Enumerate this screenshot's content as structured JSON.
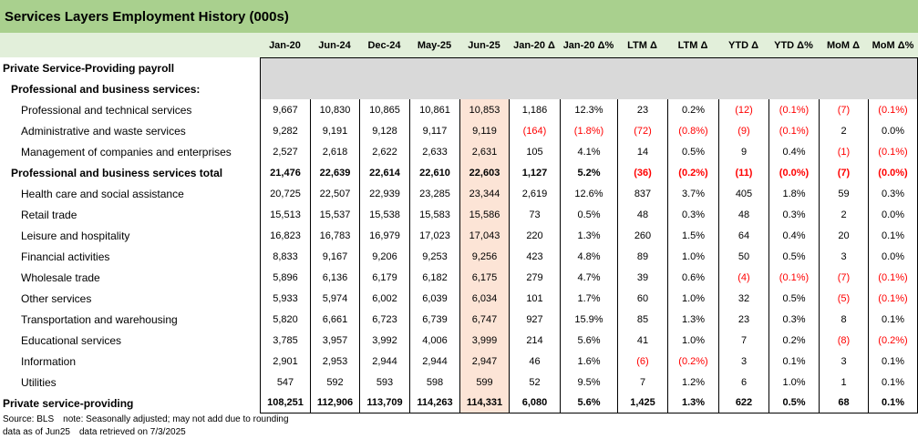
{
  "colors": {
    "title_bar": "#a9d08e",
    "header_row": "#e2efda",
    "section_fill": "#d9d9d9",
    "highlight_column": "#fce4d6",
    "negative_value": "#ff0000",
    "grid_line": "#000000"
  },
  "chart_data": {
    "type": "table",
    "title": "Services Layers Employment History (000s)",
    "columns": [
      "Jan-20",
      "Jun-24",
      "Dec-24",
      "May-25",
      "Jun-25",
      "Jan-20 Δ",
      "Jan-20 Δ%",
      "LTM Δ",
      "LTM Δ",
      "YTD Δ",
      "YTD Δ%",
      "MoM Δ",
      "MoM Δ%"
    ],
    "highlight_column_index": 4,
    "rows": [
      {
        "label": "Private Service-Providing payroll",
        "level": 0,
        "total": false,
        "values": []
      },
      {
        "label": "Professional and business services:",
        "level": 1,
        "total": false,
        "values": []
      },
      {
        "label": "Professional and technical services",
        "level": 2,
        "total": false,
        "values": [
          "9,667",
          "10,830",
          "10,865",
          "10,861",
          "10,853",
          "1,186",
          "12.3%",
          "23",
          "0.2%",
          "(12)",
          "(0.1%)",
          "(7)",
          "(0.1%)"
        ]
      },
      {
        "label": "Administrative and waste services",
        "level": 2,
        "total": false,
        "values": [
          "9,282",
          "9,191",
          "9,128",
          "9,117",
          "9,119",
          "(164)",
          "(1.8%)",
          "(72)",
          "(0.8%)",
          "(9)",
          "(0.1%)",
          "2",
          "0.0%"
        ]
      },
      {
        "label": "Management of companies and enterprises",
        "level": 2,
        "total": false,
        "values": [
          "2,527",
          "2,618",
          "2,622",
          "2,633",
          "2,631",
          "105",
          "4.1%",
          "14",
          "0.5%",
          "9",
          "0.4%",
          "(1)",
          "(0.1%)"
        ]
      },
      {
        "label": "Professional and business services total",
        "level": 1,
        "total": true,
        "values": [
          "21,476",
          "22,639",
          "22,614",
          "22,610",
          "22,603",
          "1,127",
          "5.2%",
          "(36)",
          "(0.2%)",
          "(11)",
          "(0.0%)",
          "(7)",
          "(0.0%)"
        ]
      },
      {
        "label": "Health care and social assistance",
        "level": 2,
        "total": false,
        "values": [
          "20,725",
          "22,507",
          "22,939",
          "23,285",
          "23,344",
          "2,619",
          "12.6%",
          "837",
          "3.7%",
          "405",
          "1.8%",
          "59",
          "0.3%"
        ]
      },
      {
        "label": "Retail trade",
        "level": 2,
        "total": false,
        "values": [
          "15,513",
          "15,537",
          "15,538",
          "15,583",
          "15,586",
          "73",
          "0.5%",
          "48",
          "0.3%",
          "48",
          "0.3%",
          "2",
          "0.0%"
        ]
      },
      {
        "label": "Leisure and hospitality",
        "level": 2,
        "total": false,
        "values": [
          "16,823",
          "16,783",
          "16,979",
          "17,023",
          "17,043",
          "220",
          "1.3%",
          "260",
          "1.5%",
          "64",
          "0.4%",
          "20",
          "0.1%"
        ]
      },
      {
        "label": "Financial activities",
        "level": 2,
        "total": false,
        "values": [
          "8,833",
          "9,167",
          "9,206",
          "9,253",
          "9,256",
          "423",
          "4.8%",
          "89",
          "1.0%",
          "50",
          "0.5%",
          "3",
          "0.0%"
        ]
      },
      {
        "label": "Wholesale trade",
        "level": 2,
        "total": false,
        "values": [
          "5,896",
          "6,136",
          "6,179",
          "6,182",
          "6,175",
          "279",
          "4.7%",
          "39",
          "0.6%",
          "(4)",
          "(0.1%)",
          "(7)",
          "(0.1%)"
        ]
      },
      {
        "label": "Other services",
        "level": 2,
        "total": false,
        "values": [
          "5,933",
          "5,974",
          "6,002",
          "6,039",
          "6,034",
          "101",
          "1.7%",
          "60",
          "1.0%",
          "32",
          "0.5%",
          "(5)",
          "(0.1%)"
        ]
      },
      {
        "label": "Transportation and warehousing",
        "level": 2,
        "total": false,
        "values": [
          "5,820",
          "6,661",
          "6,723",
          "6,739",
          "6,747",
          "927",
          "15.9%",
          "85",
          "1.3%",
          "23",
          "0.3%",
          "8",
          "0.1%"
        ]
      },
      {
        "label": "Educational services",
        "level": 2,
        "total": false,
        "values": [
          "3,785",
          "3,957",
          "3,992",
          "4,006",
          "3,999",
          "214",
          "5.6%",
          "41",
          "1.0%",
          "7",
          "0.2%",
          "(8)",
          "(0.2%)"
        ]
      },
      {
        "label": "Information",
        "level": 2,
        "total": false,
        "values": [
          "2,901",
          "2,953",
          "2,944",
          "2,944",
          "2,947",
          "46",
          "1.6%",
          "(6)",
          "(0.2%)",
          "3",
          "0.1%",
          "3",
          "0.1%"
        ]
      },
      {
        "label": "Utilities",
        "level": 2,
        "total": false,
        "values": [
          "547",
          "592",
          "593",
          "598",
          "599",
          "52",
          "9.5%",
          "7",
          "1.2%",
          "6",
          "1.0%",
          "1",
          "0.1%"
        ]
      },
      {
        "label": "Private service-providing",
        "level": 0,
        "total": true,
        "values": [
          "108,251",
          "112,906",
          "113,709",
          "114,263",
          "114,331",
          "6,080",
          "5.6%",
          "1,425",
          "1.3%",
          "622",
          "0.5%",
          "68",
          "0.1%"
        ]
      }
    ]
  },
  "footnotes": {
    "source": "Source: BLS",
    "note": "note: Seasonally adjusted; may not add due to rounding",
    "as_of": "data as of Jun25",
    "retrieved": "data retrieved on 7/3/2025"
  }
}
